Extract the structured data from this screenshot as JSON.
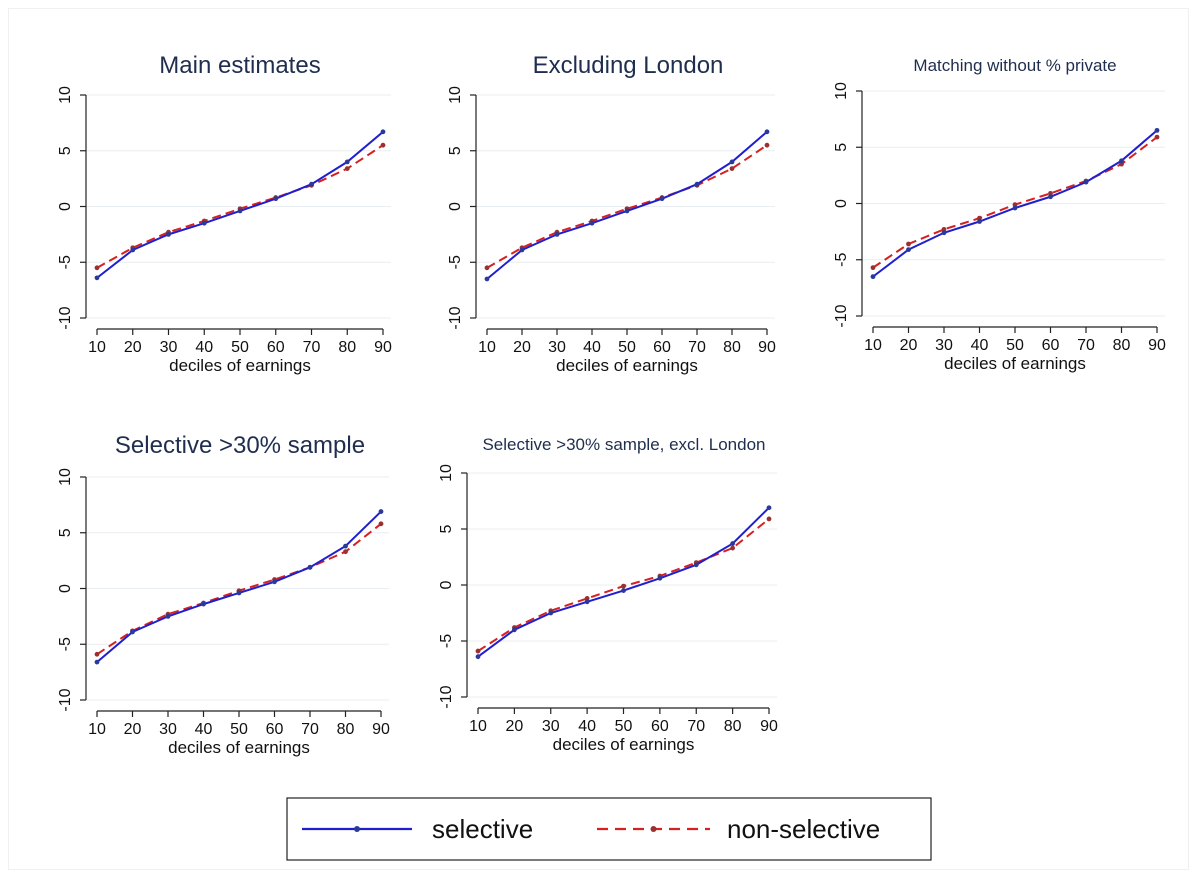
{
  "chart_data": [
    {
      "type": "line",
      "title": "Main estimates",
      "xlabel": "deciles of earnings",
      "ylabel": "",
      "x": [
        10,
        20,
        30,
        40,
        50,
        60,
        70,
        80,
        90
      ],
      "xlim": [
        10,
        90
      ],
      "ylim": [
        -10,
        10
      ],
      "yticks": [
        -10,
        -5,
        0,
        5,
        10
      ],
      "grid": true,
      "series": [
        {
          "name": "selective",
          "color": "#1f1fcf",
          "style": "solid",
          "values": [
            -6.4,
            -3.9,
            -2.5,
            -1.5,
            -0.4,
            0.7,
            2.0,
            4.0,
            6.7
          ]
        },
        {
          "name": "non-selective",
          "color": "#d62020",
          "style": "dashed",
          "values": [
            -5.5,
            -3.7,
            -2.3,
            -1.3,
            -0.2,
            0.8,
            1.9,
            3.4,
            5.5
          ]
        }
      ]
    },
    {
      "type": "line",
      "title": "Excluding London",
      "xlabel": "deciles of earnings",
      "ylabel": "",
      "x": [
        10,
        20,
        30,
        40,
        50,
        60,
        70,
        80,
        90
      ],
      "xlim": [
        10,
        90
      ],
      "ylim": [
        -10,
        10
      ],
      "yticks": [
        -10,
        -5,
        0,
        5,
        10
      ],
      "grid": true,
      "series": [
        {
          "name": "selective",
          "color": "#1f1fcf",
          "style": "solid",
          "values": [
            -6.5,
            -3.9,
            -2.5,
            -1.5,
            -0.4,
            0.7,
            2.0,
            4.0,
            6.7
          ]
        },
        {
          "name": "non-selective",
          "color": "#d62020",
          "style": "dashed",
          "values": [
            -5.5,
            -3.7,
            -2.3,
            -1.3,
            -0.2,
            0.8,
            1.9,
            3.4,
            5.5
          ]
        }
      ]
    },
    {
      "type": "line",
      "title": "Matching without % private",
      "xlabel": "deciles of earnings",
      "ylabel": "",
      "x": [
        10,
        20,
        30,
        40,
        50,
        60,
        70,
        80,
        90
      ],
      "xlim": [
        10,
        90
      ],
      "ylim": [
        -10,
        10
      ],
      "yticks": [
        -10,
        -5,
        0,
        5,
        10
      ],
      "grid": true,
      "series": [
        {
          "name": "selective",
          "color": "#1f1fcf",
          "style": "solid",
          "values": [
            -6.5,
            -4.1,
            -2.6,
            -1.6,
            -0.4,
            0.6,
            1.9,
            3.8,
            6.5
          ]
        },
        {
          "name": "non-selective",
          "color": "#d62020",
          "style": "dashed",
          "values": [
            -5.7,
            -3.6,
            -2.3,
            -1.3,
            -0.1,
            0.9,
            2.0,
            3.5,
            5.9
          ]
        }
      ]
    },
    {
      "type": "line",
      "title": "Selective >30% sample",
      "xlabel": "deciles of earnings",
      "ylabel": "",
      "x": [
        10,
        20,
        30,
        40,
        50,
        60,
        70,
        80,
        90
      ],
      "xlim": [
        10,
        90
      ],
      "ylim": [
        -10,
        10
      ],
      "yticks": [
        -10,
        -5,
        0,
        5,
        10
      ],
      "grid": true,
      "series": [
        {
          "name": "selective",
          "color": "#1f1fcf",
          "style": "solid",
          "values": [
            -6.6,
            -3.9,
            -2.5,
            -1.4,
            -0.4,
            0.6,
            1.9,
            3.8,
            6.9
          ]
        },
        {
          "name": "non-selective",
          "color": "#d62020",
          "style": "dashed",
          "values": [
            -5.9,
            -3.8,
            -2.3,
            -1.3,
            -0.2,
            0.8,
            1.9,
            3.3,
            5.8
          ]
        }
      ]
    },
    {
      "type": "line",
      "title": "Selective >30% sample, excl. London",
      "xlabel": "deciles of earnings",
      "ylabel": "",
      "x": [
        10,
        20,
        30,
        40,
        50,
        60,
        70,
        80,
        90
      ],
      "xlim": [
        10,
        90
      ],
      "ylim": [
        -10,
        10
      ],
      "yticks": [
        -10,
        -5,
        0,
        5,
        10
      ],
      "grid": true,
      "series": [
        {
          "name": "selective",
          "color": "#1f1fcf",
          "style": "solid",
          "values": [
            -6.4,
            -4.0,
            -2.5,
            -1.5,
            -0.5,
            0.6,
            1.8,
            3.7,
            6.9
          ]
        },
        {
          "name": "non-selective",
          "color": "#d62020",
          "style": "dashed",
          "values": [
            -5.9,
            -3.8,
            -2.3,
            -1.2,
            -0.1,
            0.8,
            2.0,
            3.3,
            5.9
          ]
        }
      ]
    }
  ],
  "legend": {
    "placement": "bottom-center",
    "items": [
      {
        "label": "selective",
        "color": "#1f1fcf",
        "style": "solid"
      },
      {
        "label": "non-selective",
        "color": "#d62020",
        "style": "dashed"
      }
    ]
  }
}
